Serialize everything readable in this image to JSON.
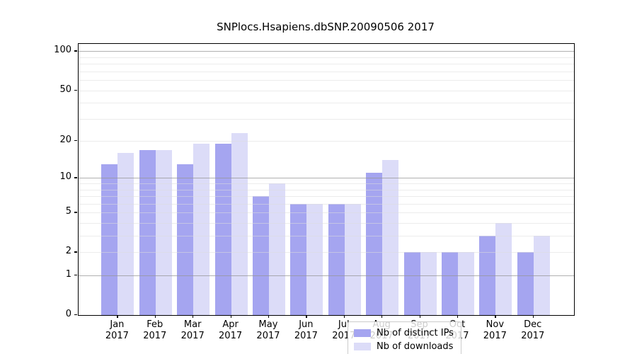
{
  "chart_data": {
    "type": "bar",
    "title": "SNPlocs.Hsapiens.dbSNP.20090506 2017",
    "categories": [
      "Jan 2017",
      "Feb 2017",
      "Mar 2017",
      "Apr 2017",
      "May 2017",
      "Jun 2017",
      "Jul 2017",
      "Aug 2017",
      "Sep 2017",
      "Oct 2017",
      "Nov 2017",
      "Dec 2017"
    ],
    "months": [
      "Jan",
      "Feb",
      "Mar",
      "Apr",
      "May",
      "Jun",
      "Jul",
      "Aug",
      "Sep",
      "Oct",
      "Nov",
      "Dec"
    ],
    "year": "2017",
    "series": [
      {
        "name": "Nb of distinct IPs",
        "color": "#a5a5f0",
        "values": [
          13,
          17,
          13,
          19,
          7,
          6,
          6,
          11,
          2,
          2,
          3,
          2
        ]
      },
      {
        "name": "Nb of downloads",
        "color": "#dcdcf8",
        "values": [
          16,
          17,
          19,
          23,
          9,
          6,
          6,
          14,
          2,
          2,
          4,
          3
        ]
      }
    ],
    "yscale": "log1p",
    "ylim": [
      0,
      114
    ],
    "yticks": [
      0,
      1,
      2,
      5,
      10,
      20,
      50,
      100
    ],
    "gridlines": {
      "major": [
        1,
        10,
        100
      ],
      "minor": [
        2,
        3,
        4,
        5,
        6,
        7,
        8,
        9,
        20,
        30,
        40,
        50,
        60,
        70,
        80,
        90
      ]
    },
    "grid": true,
    "legend_position": "lower-center-inside",
    "xlabel": "",
    "ylabel": ""
  },
  "colors": {
    "background": "#ffffff",
    "spine": "#000000",
    "major_grid": "#b0b0b0",
    "minor_grid": "#e6e6e6",
    "legend_border": "#cccccc"
  }
}
